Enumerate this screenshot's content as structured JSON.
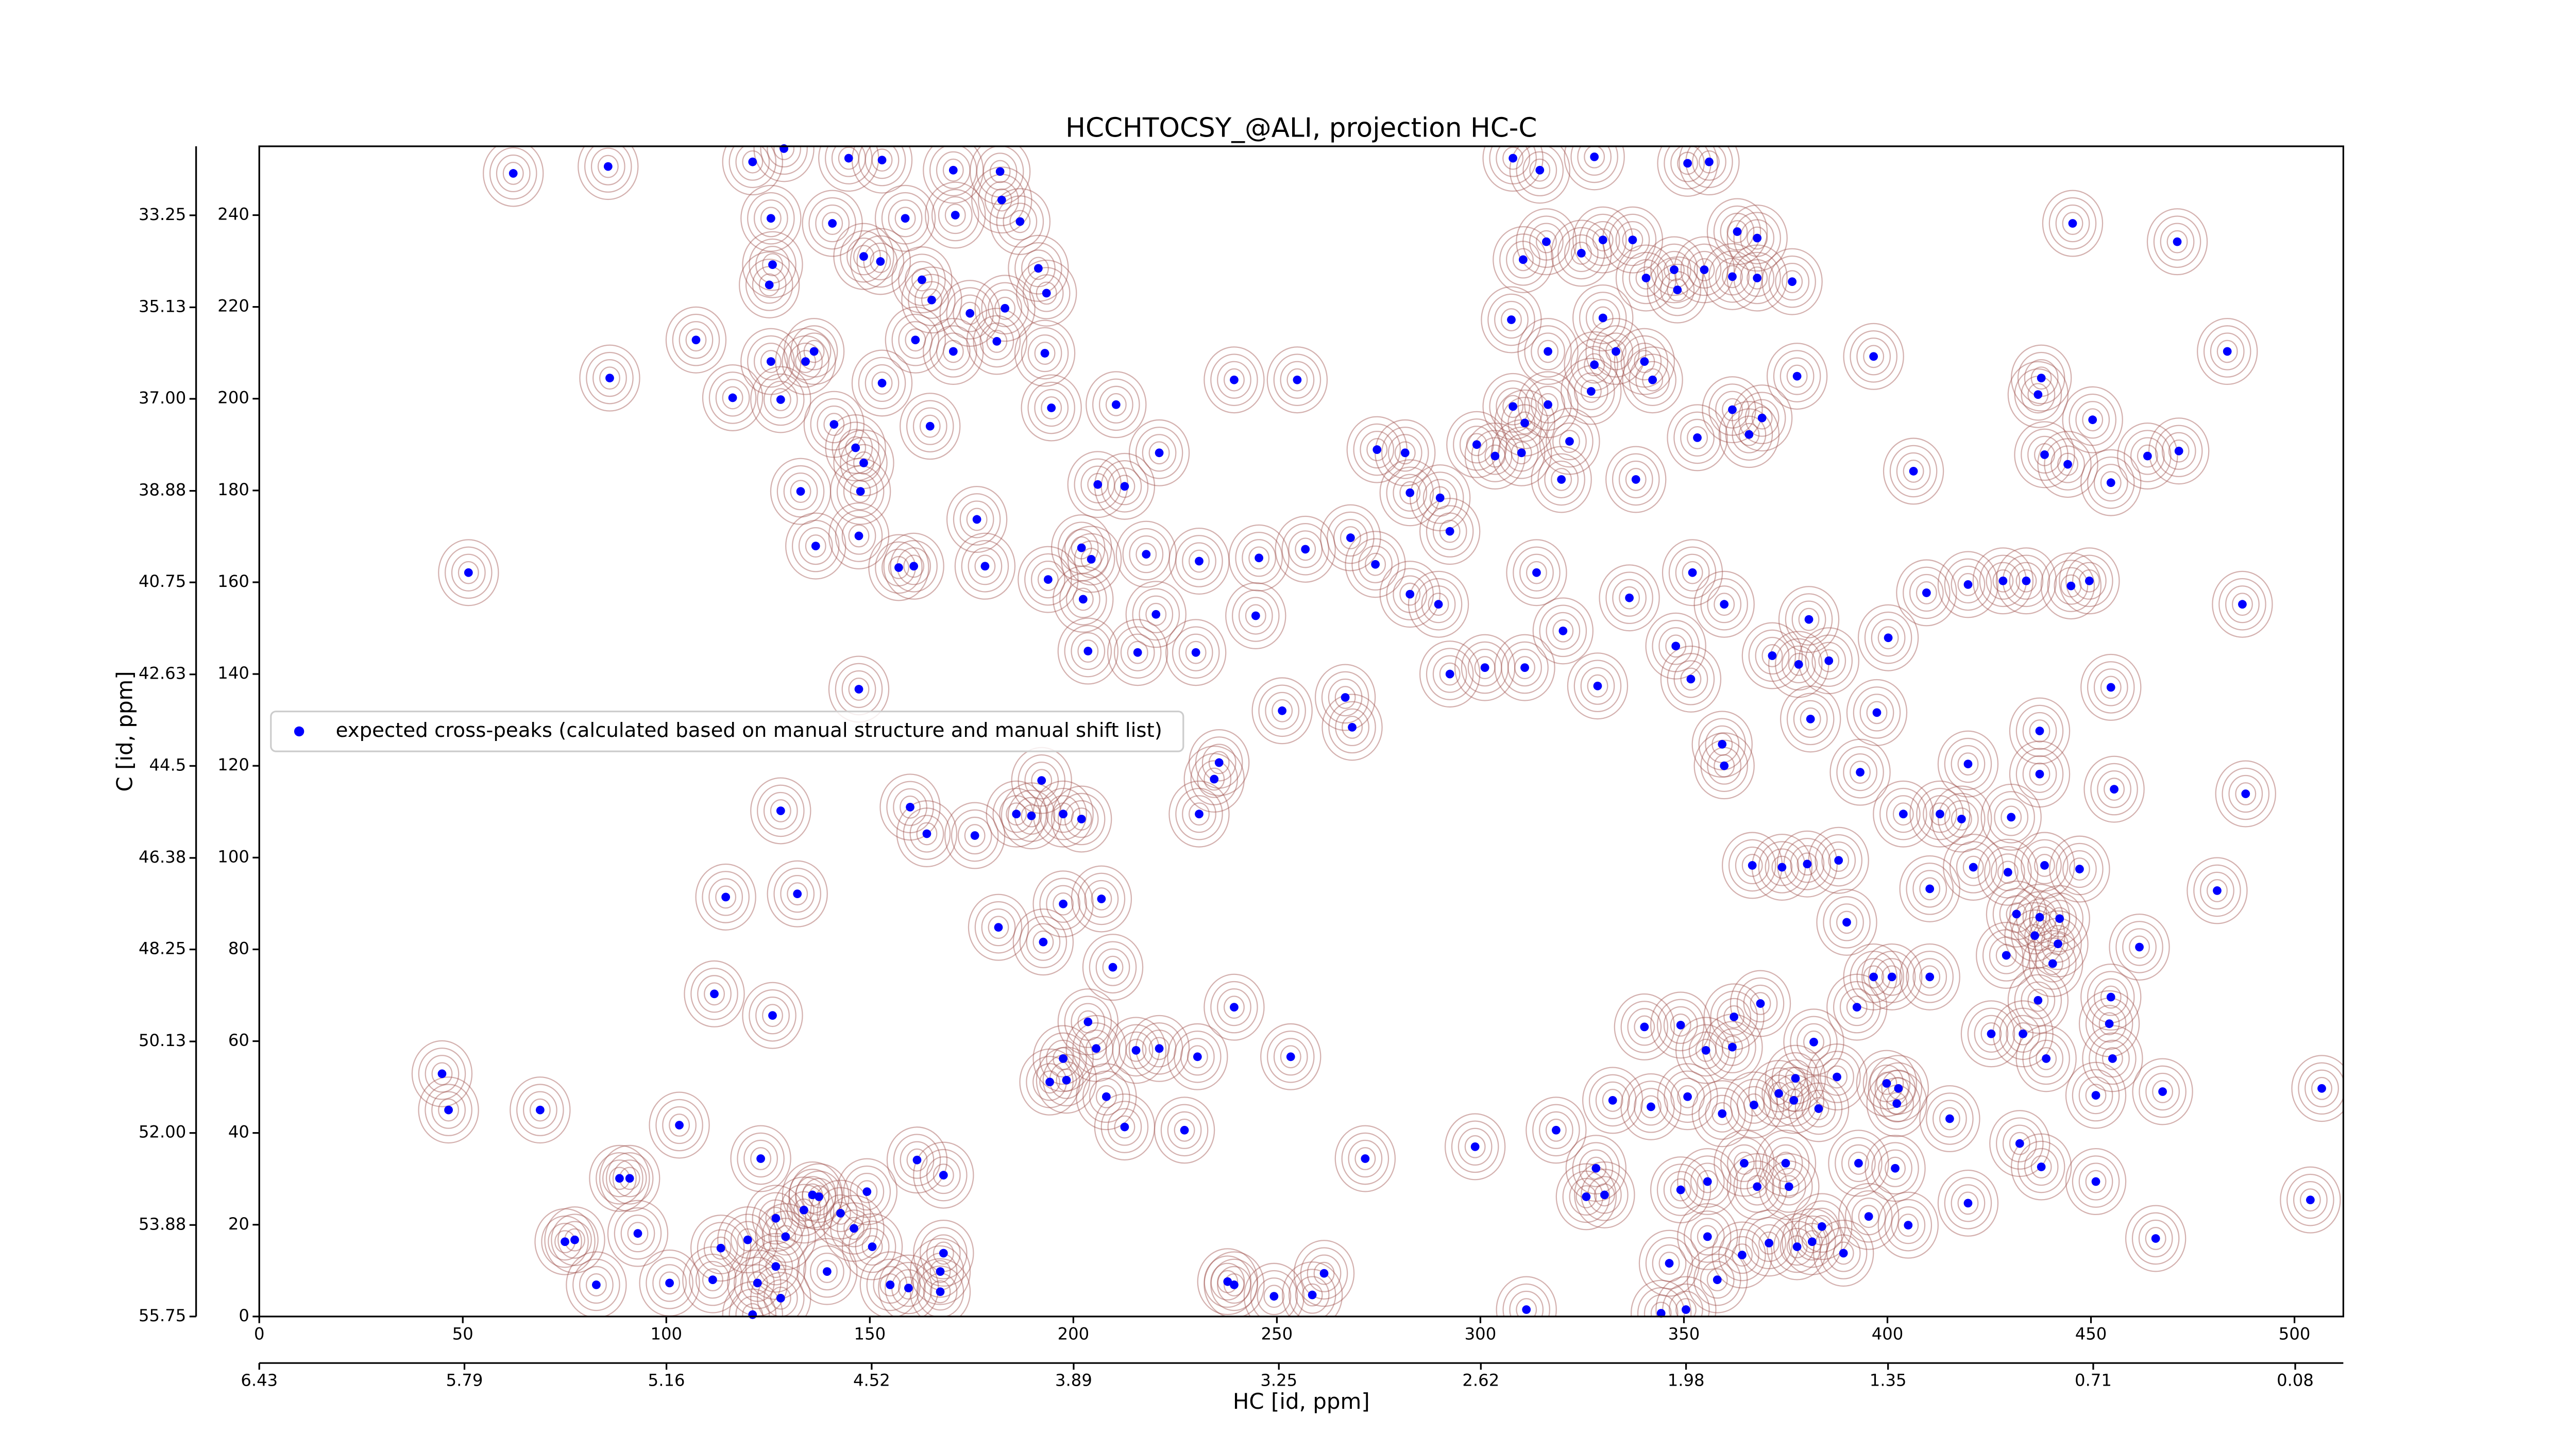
{
  "chart_data": {
    "type": "scatter",
    "title": "HCCHTOCSY_@ALI, projection HC-C",
    "x_label": "HC [id, ppm]",
    "y_label": "C [id, ppm]",
    "xlim": [
      0,
      512
    ],
    "xticks": [
      0,
      50,
      100,
      150,
      200,
      250,
      300,
      350,
      400,
      450,
      500
    ],
    "ylim": [
      0,
      255
    ],
    "yticks": [
      0,
      20,
      40,
      60,
      80,
      100,
      120,
      140,
      160,
      180,
      200,
      220,
      240
    ],
    "x2lim": [
      6.43,
      -0.07
    ],
    "x2ticks": [
      6.43,
      5.79,
      5.16,
      4.52,
      3.89,
      3.25,
      2.62,
      1.98,
      1.35,
      0.71,
      0.08
    ],
    "y2lim": [
      55.75,
      31.84
    ],
    "y2ticks": [
      33.25,
      35.13,
      {
        "value": 37,
        "label": "37.00"
      },
      38.88,
      40.75,
      42.63,
      44.5,
      46.38,
      48.25,
      50.13,
      {
        "value": 52,
        "label": "52.00"
      },
      53.88,
      55.75
    ],
    "legend": "upper left",
    "series": [
      {
        "name": "expected cross-peaks (calculated based on manual structure and manual shift list)",
        "color": "#0000ff",
        "x": [
          62.4,
          85.7,
          121.2,
          128.9,
          144.8,
          153.0,
          170.5,
          182.0,
          125.7,
          158.7,
          140.8,
          148.5,
          152.6,
          126.1,
          125.3,
          171.0,
          182.4,
          186.9,
          191.4,
          183.2,
          193.4,
          162.8,
          165.2,
          107.3,
          125.7,
          134.2,
          136.3,
          161.2,
          170.5,
          174.6,
          181.2,
          193.0,
          86.1,
          116.3,
          128.1,
          153.0,
          141.2,
          164.8,
          146.5,
          148.5,
          194.6,
          210.5,
          239.5,
          255.0,
          133.0,
          147.7,
          206.0,
          212.6,
          221.1,
          136.7,
          147.3,
          157.1,
          160.8,
          176.3,
          178.3,
          193.8,
          202.0,
          204.4,
          202.4,
          217.9,
          230.9,
          245.6,
          51.4,
          220.3,
          244.8,
          215.8,
          203.6,
          230.1,
          147.3,
          251.3,
          266.8,
          268.5,
          235.8,
          234.6,
          230.9,
          257.0,
          268.1,
          274.6,
          281.5,
          282.7,
          290.1,
          292.5,
          299.1,
          303.6,
          310.1,
          321.9,
          319.9,
          338.2,
          274.2,
          282.7,
          289.7,
          292.5,
          301.1,
          310.9,
          313.8,
          320.3,
          328.8,
          336.6,
          352.1,
          348.0,
          351.7,
          359.9,
          359.4,
          353.3,
          366.0,
          369.2,
          377.8,
          361.9,
          396.6,
          406.4,
          419.8,
          409.6,
          428.4,
          434.1,
          445.1,
          449.6,
          487.2,
          445.5,
          471.2,
          483.5,
          437.8,
          437.0,
          450.4,
          438.6,
          444.3,
          454.9,
          463.9,
          471.6,
          380.7,
          371.7,
          378.2,
          385.6,
          381.1,
          397.4,
          400.2,
          393.3,
          419.8,
          437.4,
          437.4,
          454.9,
          455.7,
          488.0,
          481.0,
          403.9,
          412.9,
          418.2,
          430.4,
          438.6,
          447.2,
          421.1,
          429.6,
          410.4,
          390.0,
          431.7,
          437.4,
          442.3,
          436.2,
          441.9,
          429.2,
          440.6,
          461.9,
          454.9,
          455.3,
          451.2,
          454.5,
          467.6,
          506.7,
          503.9,
          465.9,
          451.2,
          425.5,
          433.3,
          437.0,
          439.0,
          432.5,
          437.8,
          401.1,
          396.6,
          410.4,
          402.7,
          387.6,
          377.4,
          381.9,
          368.8,
          392.5,
          362.3,
          361.9,
          355.4,
          349.2,
          340.3,
          332.5,
          341.9,
          350.9,
          359.4,
          367.2,
          373.3,
          377.0,
          383.1,
          399.8,
          402.3,
          415.3,
          392.9,
          401.9,
          405.1,
          419.8,
          395.4,
          389.2,
          383.9,
          375.8,
          368.0,
          355.8,
          349.2,
          355.8,
          346.4,
          358.2,
          364.3,
          370.9,
          377.8,
          381.5,
          350.5,
          344.4,
          328.4,
          326.0,
          330.5,
          318.6,
          311.3,
          364.8,
          375.0,
          366.8,
          374.1,
          380.3,
          388.0,
          359.9,
          192.2,
          164.0,
          175.8,
          186.0,
          189.7,
          197.5,
          202.0,
          159.9,
          128.1,
          132.2,
          114.6,
          181.6,
          197.5,
          206.9,
          192.6,
          209.7,
          111.8,
          126.1,
          203.6,
          215.4,
          221.1,
          205.6,
          197.5,
          230.5,
          239.5,
          253.4,
          198.3,
          194.2,
          208.1,
          227.3,
          212.6,
          271.7,
          298.7,
          44.9,
          46.5,
          69.0,
          103.2,
          88.5,
          91.0,
          123.2,
          161.6,
          168.1,
          135.9,
          133.8,
          137.5,
          149.3,
          126.9,
          129.3,
          113.4,
          120.0,
          142.8,
          146.1,
          126.9,
          139.5,
          150.6,
          168.1,
          167.3,
          155.0,
          93.0,
          75.1,
          77.5,
          82.8,
          100.8,
          111.4,
          122.4,
          159.5,
          167.3,
          121.2,
          128.1,
          237.9,
          239.5,
          249.3,
          258.7,
          261.6,
          308.0,
          314.6,
          328.0,
          350.9,
          356.2,
          310.5,
          316.2,
          324.8,
          330.1,
          337.4,
          347.6,
          348.4,
          355.0,
          340.7,
          330.1,
          307.6,
          316.6,
          328.0,
          333.3,
          340.3,
          342.3,
          327.2,
          316.6,
          308.0,
          310.9,
          363.1,
          368.0,
          361.9,
          368.0,
          376.6
        ],
        "values": [
          249.1,
          250.6,
          251.6,
          254.5,
          252.4,
          252.0,
          249.8,
          249.5,
          239.3,
          239.3,
          238.2,
          231.0,
          229.9,
          229.2,
          224.8,
          240.0,
          243.3,
          238.6,
          228.4,
          219.7,
          223.0,
          225.9,
          221.5,
          212.8,
          208.1,
          208.1,
          210.3,
          212.8,
          210.3,
          218.6,
          212.5,
          209.9,
          204.5,
          200.2,
          199.8,
          203.4,
          194.4,
          194.0,
          189.3,
          186.0,
          198.0,
          198.7,
          204.1,
          204.1,
          179.8,
          179.8,
          181.3,
          180.9,
          188.2,
          167.9,
          170.1,
          163.2,
          163.5,
          173.7,
          163.5,
          160.6,
          167.5,
          165.0,
          156.3,
          166.1,
          164.6,
          165.3,
          162.1,
          153.0,
          152.7,
          144.7,
          145.0,
          144.7,
          136.7,
          132.0,
          134.9,
          128.4,
          120.7,
          117.1,
          109.5,
          167.2,
          169.7,
          188.9,
          188.2,
          179.5,
          178.4,
          171.1,
          190.0,
          187.5,
          188.2,
          190.7,
          182.4,
          182.4,
          163.9,
          157.4,
          155.2,
          140.0,
          141.4,
          141.4,
          162.1,
          149.4,
          137.4,
          156.6,
          162.1,
          146.1,
          138.9,
          155.2,
          124.7,
          191.5,
          192.2,
          195.8,
          204.9,
          197.6,
          209.2,
          184.2,
          159.5,
          157.7,
          160.3,
          160.3,
          159.2,
          160.3,
          155.2,
          238.2,
          234.2,
          210.3,
          204.5,
          200.9,
          195.4,
          187.8,
          185.7,
          181.7,
          187.5,
          188.6,
          151.9,
          144.0,
          142.1,
          142.9,
          130.2,
          131.6,
          147.9,
          118.6,
          120.4,
          127.6,
          118.2,
          137.1,
          114.9,
          113.9,
          92.8,
          109.5,
          109.5,
          108.4,
          108.8,
          98.3,
          97.5,
          97.9,
          96.8,
          93.2,
          85.9,
          87.7,
          87.0,
          86.7,
          83.0,
          81.2,
          78.7,
          76.9,
          80.5,
          69.6,
          56.2,
          48.2,
          63.8,
          49.0,
          49.7,
          25.4,
          17.0,
          29.4,
          61.6,
          61.6,
          68.9,
          56.2,
          37.7,
          32.6,
          74.0,
          74.0,
          74.0,
          49.7,
          52.2,
          51.9,
          59.8,
          68.2,
          67.4,
          65.3,
          58.7,
          58.0,
          63.5,
          63.1,
          47.1,
          45.7,
          47.9,
          44.2,
          46.1,
          48.6,
          47.1,
          45.3,
          50.8,
          46.4,
          43.1,
          33.4,
          32.3,
          19.9,
          24.7,
          21.8,
          13.8,
          19.6,
          28.3,
          28.3,
          29.4,
          27.6,
          17.4,
          11.6,
          8.0,
          13.4,
          16.0,
          15.2,
          16.3,
          1.5,
          0.7,
          32.3,
          26.1,
          26.5,
          40.6,
          1.5,
          33.4,
          33.4,
          98.3,
          97.9,
          98.6,
          99.4,
          120.0,
          116.8,
          105.2,
          104.8,
          109.5,
          109.1,
          109.5,
          108.4,
          111.0,
          110.2,
          92.1,
          91.4,
          84.8,
          89.9,
          91.0,
          81.6,
          76.1,
          70.3,
          65.6,
          64.2,
          58.0,
          58.4,
          58.4,
          56.2,
          56.6,
          67.4,
          56.6,
          51.5,
          51.1,
          47.9,
          40.6,
          41.3,
          34.4,
          37.0,
          52.9,
          45.0,
          45.0,
          41.7,
          30.1,
          30.1,
          34.4,
          34.1,
          30.8,
          26.5,
          23.2,
          26.1,
          27.2,
          21.4,
          17.4,
          14.9,
          16.7,
          22.5,
          19.2,
          10.9,
          9.8,
          15.2,
          13.8,
          9.8,
          6.9,
          18.1,
          16.3,
          16.7,
          6.9,
          7.3,
          8.0,
          7.3,
          6.2,
          5.4,
          0.4,
          4.0,
          7.6,
          6.9,
          4.4,
          4.7,
          9.4,
          252.4,
          249.8,
          252.7,
          251.3,
          251.6,
          230.3,
          234.2,
          231.7,
          234.6,
          234.6,
          228.1,
          223.7,
          228.1,
          226.3,
          217.6,
          217.2,
          210.3,
          207.4,
          210.3,
          208.1,
          204.1,
          201.6,
          198.7,
          198.3,
          194.7,
          236.4,
          235.0,
          226.6,
          226.3,
          225.5
        ]
      }
    ]
  }
}
